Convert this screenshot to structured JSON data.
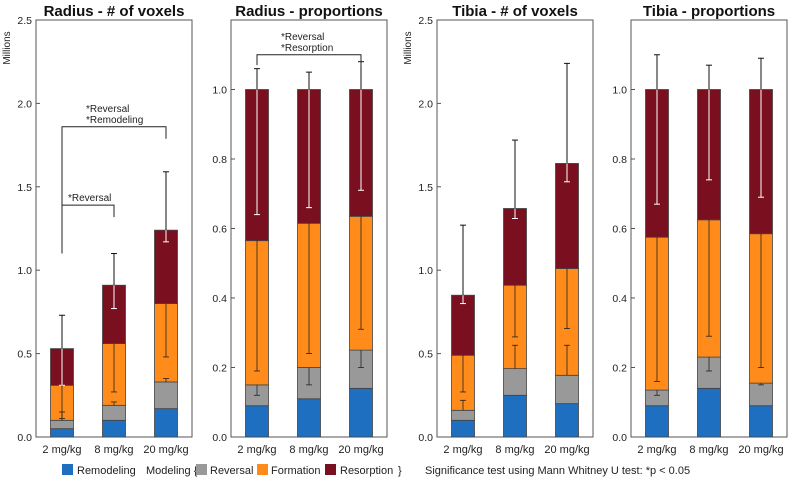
{
  "footer_note": "Significance test using Mann Whitney U test: *p < 0.05",
  "legend": {
    "remodeling_label": "Remodeling",
    "modeling_label": "Modeling {",
    "reversal_label": "Reversal",
    "formation_label": "Formation",
    "resorption_label": "Resorption",
    "closing_brace": "}",
    "colors": {
      "remodeling": "#1f6fc0",
      "reversal": "#999999",
      "formation": "#ff8c1a",
      "resorption": "#7a0f1f"
    }
  },
  "chart_data": [
    {
      "type": "bar",
      "stacked": true,
      "title": "Radius - # of voxels",
      "ylabel": "Millions",
      "ylim": [
        0,
        2.5
      ],
      "yticks": [
        "0.0",
        "0.5",
        "1.0",
        "1.5",
        "2.0",
        "2.5"
      ],
      "categories": [
        "2 mg/kg",
        "8 mg/kg",
        "20 mg/kg"
      ],
      "series": [
        {
          "name": "Remodeling",
          "values": [
            0.05,
            0.1,
            0.17
          ]
        },
        {
          "name": "Reversal",
          "values": [
            0.05,
            0.09,
            0.16
          ]
        },
        {
          "name": "Formation",
          "values": [
            0.21,
            0.37,
            0.47
          ]
        },
        {
          "name": "Resorption",
          "values": [
            0.22,
            0.35,
            0.44
          ]
        }
      ],
      "error_bars": {
        "total_upper": [
          0.73,
          1.1,
          1.59
        ],
        "resorption_lower": [
          0.31,
          0.77,
          1.17
        ],
        "formation_lower": [
          0.11,
          0.27,
          0.48
        ],
        "reversal_lower": [
          0.15,
          0.21,
          0.35
        ]
      },
      "annotations": [
        {
          "lines": [
            "*Reversal",
            "*Remodeling"
          ],
          "from": 0,
          "to": 2,
          "level": 1.86,
          "drop": 1.1
        },
        {
          "lines": [
            "*Reversal"
          ],
          "from": 0,
          "to": 1,
          "level": 1.39,
          "drop": 1.25
        }
      ]
    },
    {
      "type": "bar",
      "stacked": true,
      "title": "Radius - proportions",
      "ylabel": "",
      "ylim": [
        0,
        1.2
      ],
      "yticks": [
        "0.0",
        "0.2",
        "0.4",
        "0.6",
        "0.8",
        "1.0"
      ],
      "categories": [
        "2 mg/kg",
        "8 mg/kg",
        "20 mg/kg"
      ],
      "series": [
        {
          "name": "Remodeling",
          "values": [
            0.09,
            0.11,
            0.14
          ]
        },
        {
          "name": "Reversal",
          "values": [
            0.06,
            0.09,
            0.11
          ]
        },
        {
          "name": "Formation",
          "values": [
            0.415,
            0.415,
            0.385
          ]
        },
        {
          "name": "Resorption",
          "values": [
            0.435,
            0.385,
            0.365
          ]
        }
      ],
      "error_bars": {
        "total_upper": [
          1.06,
          1.05,
          1.08
        ],
        "resorption_lower": [
          0.64,
          0.66,
          0.71
        ],
        "formation_lower": [
          0.19,
          0.24,
          0.31
        ],
        "reversal_lower": [
          0.12,
          0.15,
          0.2
        ]
      },
      "annotations": [
        {
          "lines": [
            "*Reversal",
            "*Resorption"
          ],
          "from": 0,
          "to": 2,
          "level": 1.1,
          "drop": 1.07
        }
      ]
    },
    {
      "type": "bar",
      "stacked": true,
      "title": "Tibia - # of voxels",
      "ylabel": "Millions",
      "ylim": [
        0,
        2.5
      ],
      "yticks": [
        "0.0",
        "0.5",
        "1.0",
        "1.5",
        "2.0",
        "2.5"
      ],
      "categories": [
        "2 mg/kg",
        "8 mg/kg",
        "20 mg/kg"
      ],
      "series": [
        {
          "name": "Remodeling",
          "values": [
            0.1,
            0.25,
            0.2
          ]
        },
        {
          "name": "Reversal",
          "values": [
            0.06,
            0.16,
            0.17
          ]
        },
        {
          "name": "Formation",
          "values": [
            0.33,
            0.5,
            0.64
          ]
        },
        {
          "name": "Resorption",
          "values": [
            0.36,
            0.46,
            0.63
          ]
        }
      ],
      "error_bars": {
        "total_upper": [
          1.27,
          1.78,
          2.24
        ],
        "resorption_lower": [
          0.8,
          1.31,
          1.53
        ],
        "formation_lower": [
          0.27,
          0.6,
          0.65
        ],
        "reversal_lower": [
          0.22,
          0.55,
          0.55
        ]
      },
      "annotations": []
    },
    {
      "type": "bar",
      "stacked": true,
      "title": "Tibia - proportions",
      "ylabel": "",
      "ylim": [
        0,
        1.2
      ],
      "yticks": [
        "0.0",
        "0.2",
        "0.4",
        "0.6",
        "0.8",
        "1.0"
      ],
      "categories": [
        "2 mg/kg",
        "8 mg/kg",
        "20 mg/kg"
      ],
      "series": [
        {
          "name": "Remodeling",
          "values": [
            0.09,
            0.14,
            0.09
          ]
        },
        {
          "name": "Reversal",
          "values": [
            0.045,
            0.09,
            0.065
          ]
        },
        {
          "name": "Formation",
          "values": [
            0.44,
            0.395,
            0.43
          ]
        },
        {
          "name": "Resorption",
          "values": [
            0.425,
            0.375,
            0.415
          ]
        }
      ],
      "error_bars": {
        "total_upper": [
          1.1,
          1.07,
          1.09
        ],
        "resorption_lower": [
          0.67,
          0.74,
          0.69
        ],
        "formation_lower": [
          0.16,
          0.29,
          0.2
        ],
        "reversal_lower": [
          0.12,
          0.19,
          0.15
        ]
      },
      "annotations": []
    }
  ]
}
